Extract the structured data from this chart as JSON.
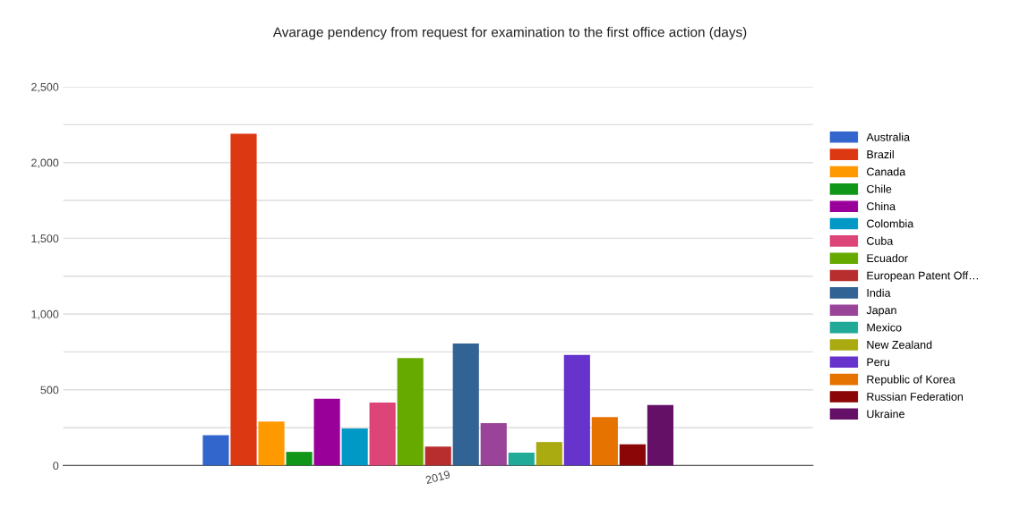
{
  "chart_data": {
    "type": "bar",
    "title": "Avarage pendency from request for examination to the first office action (days)",
    "categories": [
      "2019"
    ],
    "series": [
      {
        "name": "Australia",
        "color": "#3366cc",
        "values": [
          200
        ]
      },
      {
        "name": "Brazil",
        "color": "#dc3912",
        "values": [
          2190
        ]
      },
      {
        "name": "Canada",
        "color": "#ff9900",
        "values": [
          290
        ]
      },
      {
        "name": "Chile",
        "color": "#109618",
        "values": [
          90
        ]
      },
      {
        "name": "China",
        "color": "#990099",
        "values": [
          440
        ]
      },
      {
        "name": "Colombia",
        "color": "#0099c6",
        "values": [
          245
        ]
      },
      {
        "name": "Cuba",
        "color": "#dd4477",
        "values": [
          415
        ]
      },
      {
        "name": "Ecuador",
        "color": "#66aa00",
        "values": [
          710
        ]
      },
      {
        "name": "European Patent Off…",
        "color": "#b82e2e",
        "values": [
          125
        ]
      },
      {
        "name": "India",
        "color": "#316395",
        "values": [
          805
        ]
      },
      {
        "name": "Japan",
        "color": "#994499",
        "values": [
          280
        ]
      },
      {
        "name": "Mexico",
        "color": "#22aa99",
        "values": [
          85
        ]
      },
      {
        "name": "New Zealand",
        "color": "#aaaa11",
        "values": [
          155
        ]
      },
      {
        "name": "Peru",
        "color": "#6633cc",
        "values": [
          730
        ]
      },
      {
        "name": "Republic of Korea",
        "color": "#e67300",
        "values": [
          320
        ]
      },
      {
        "name": "Russian Federation",
        "color": "#8b0707",
        "values": [
          140
        ]
      },
      {
        "name": "Ukraine",
        "color": "#651067",
        "values": [
          400
        ]
      }
    ],
    "ylim": [
      0,
      2500
    ],
    "yticks": [
      0,
      {
        "value": 250,
        "label": null
      },
      "500",
      {
        "value": 750,
        "label": null
      },
      {
        "value": 1000,
        "label": "1,000"
      },
      {
        "value": 1250,
        "label": null
      },
      {
        "value": 1500,
        "label": "1,500"
      },
      {
        "value": 1750,
        "label": null
      },
      {
        "value": 2000,
        "label": "2,000"
      },
      {
        "value": 2250,
        "label": null
      },
      {
        "value": 2500,
        "label": "2,500"
      }
    ],
    "grid": "y",
    "legend": "right"
  }
}
